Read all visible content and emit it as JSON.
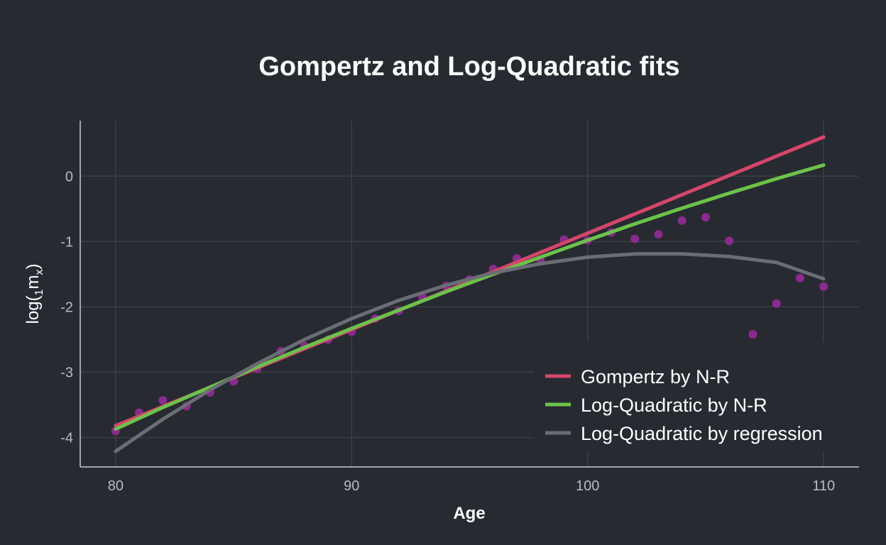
{
  "chart_data": {
    "type": "line",
    "title": "Gompertz and Log-Quadratic fits",
    "xlabel": "Age",
    "ylabel_parts": [
      "log(",
      "1",
      "m",
      "x",
      ")"
    ],
    "xlim": [
      78.5,
      111.5
    ],
    "ylim": [
      -4.45,
      0.85
    ],
    "xticks": [
      80,
      90,
      100,
      110
    ],
    "yticks": [
      -4,
      -3,
      -2,
      -1,
      0
    ],
    "grid": true,
    "legend_position": "bottom-right",
    "points": {
      "color": "#8b2a8e",
      "x": [
        80,
        81,
        82,
        83,
        84,
        85,
        86,
        87,
        88,
        89,
        90,
        91,
        92,
        93,
        94,
        95,
        96,
        97,
        98,
        99,
        100,
        101,
        102,
        103,
        104,
        105,
        106,
        107,
        108,
        109,
        110
      ],
      "y": [
        -3.9,
        -3.62,
        -3.43,
        -3.52,
        -3.31,
        -3.14,
        -2.95,
        -2.68,
        -2.6,
        -2.5,
        -2.38,
        -2.18,
        -2.06,
        -1.85,
        -1.68,
        -1.58,
        -1.42,
        -1.26,
        -1.28,
        -0.97,
        -0.98,
        -0.86,
        -0.96,
        -0.89,
        -0.68,
        -0.63,
        -0.99,
        -2.42,
        -1.95,
        -1.56,
        -1.69
      ]
    },
    "series": [
      {
        "name": "Gompertz by N-R",
        "color": "#d6456a",
        "x": [
          80,
          110
        ],
        "y": [
          -3.82,
          0.6
        ]
      },
      {
        "name": "Log-Quadratic by N-R",
        "color": "#6cc24a",
        "x": [
          80,
          82,
          84,
          86,
          88,
          90,
          92,
          94,
          96,
          98,
          100,
          102,
          104,
          106,
          108,
          110
        ],
        "y": [
          -3.87,
          -3.54,
          -3.23,
          -2.92,
          -2.62,
          -2.33,
          -2.05,
          -1.77,
          -1.5,
          -1.24,
          -0.98,
          -0.73,
          -0.49,
          -0.26,
          -0.04,
          0.17
        ]
      },
      {
        "name": "Log-Quadratic by regression",
        "color": "#6a6d74",
        "x": [
          80,
          82,
          84,
          86,
          88,
          90,
          92,
          94,
          96,
          98,
          100,
          102,
          104,
          106,
          108,
          110
        ],
        "y": [
          -4.21,
          -3.72,
          -3.27,
          -2.87,
          -2.5,
          -2.18,
          -1.9,
          -1.67,
          -1.48,
          -1.34,
          -1.24,
          -1.19,
          -1.19,
          -1.23,
          -1.32,
          -1.57
        ]
      }
    ]
  }
}
